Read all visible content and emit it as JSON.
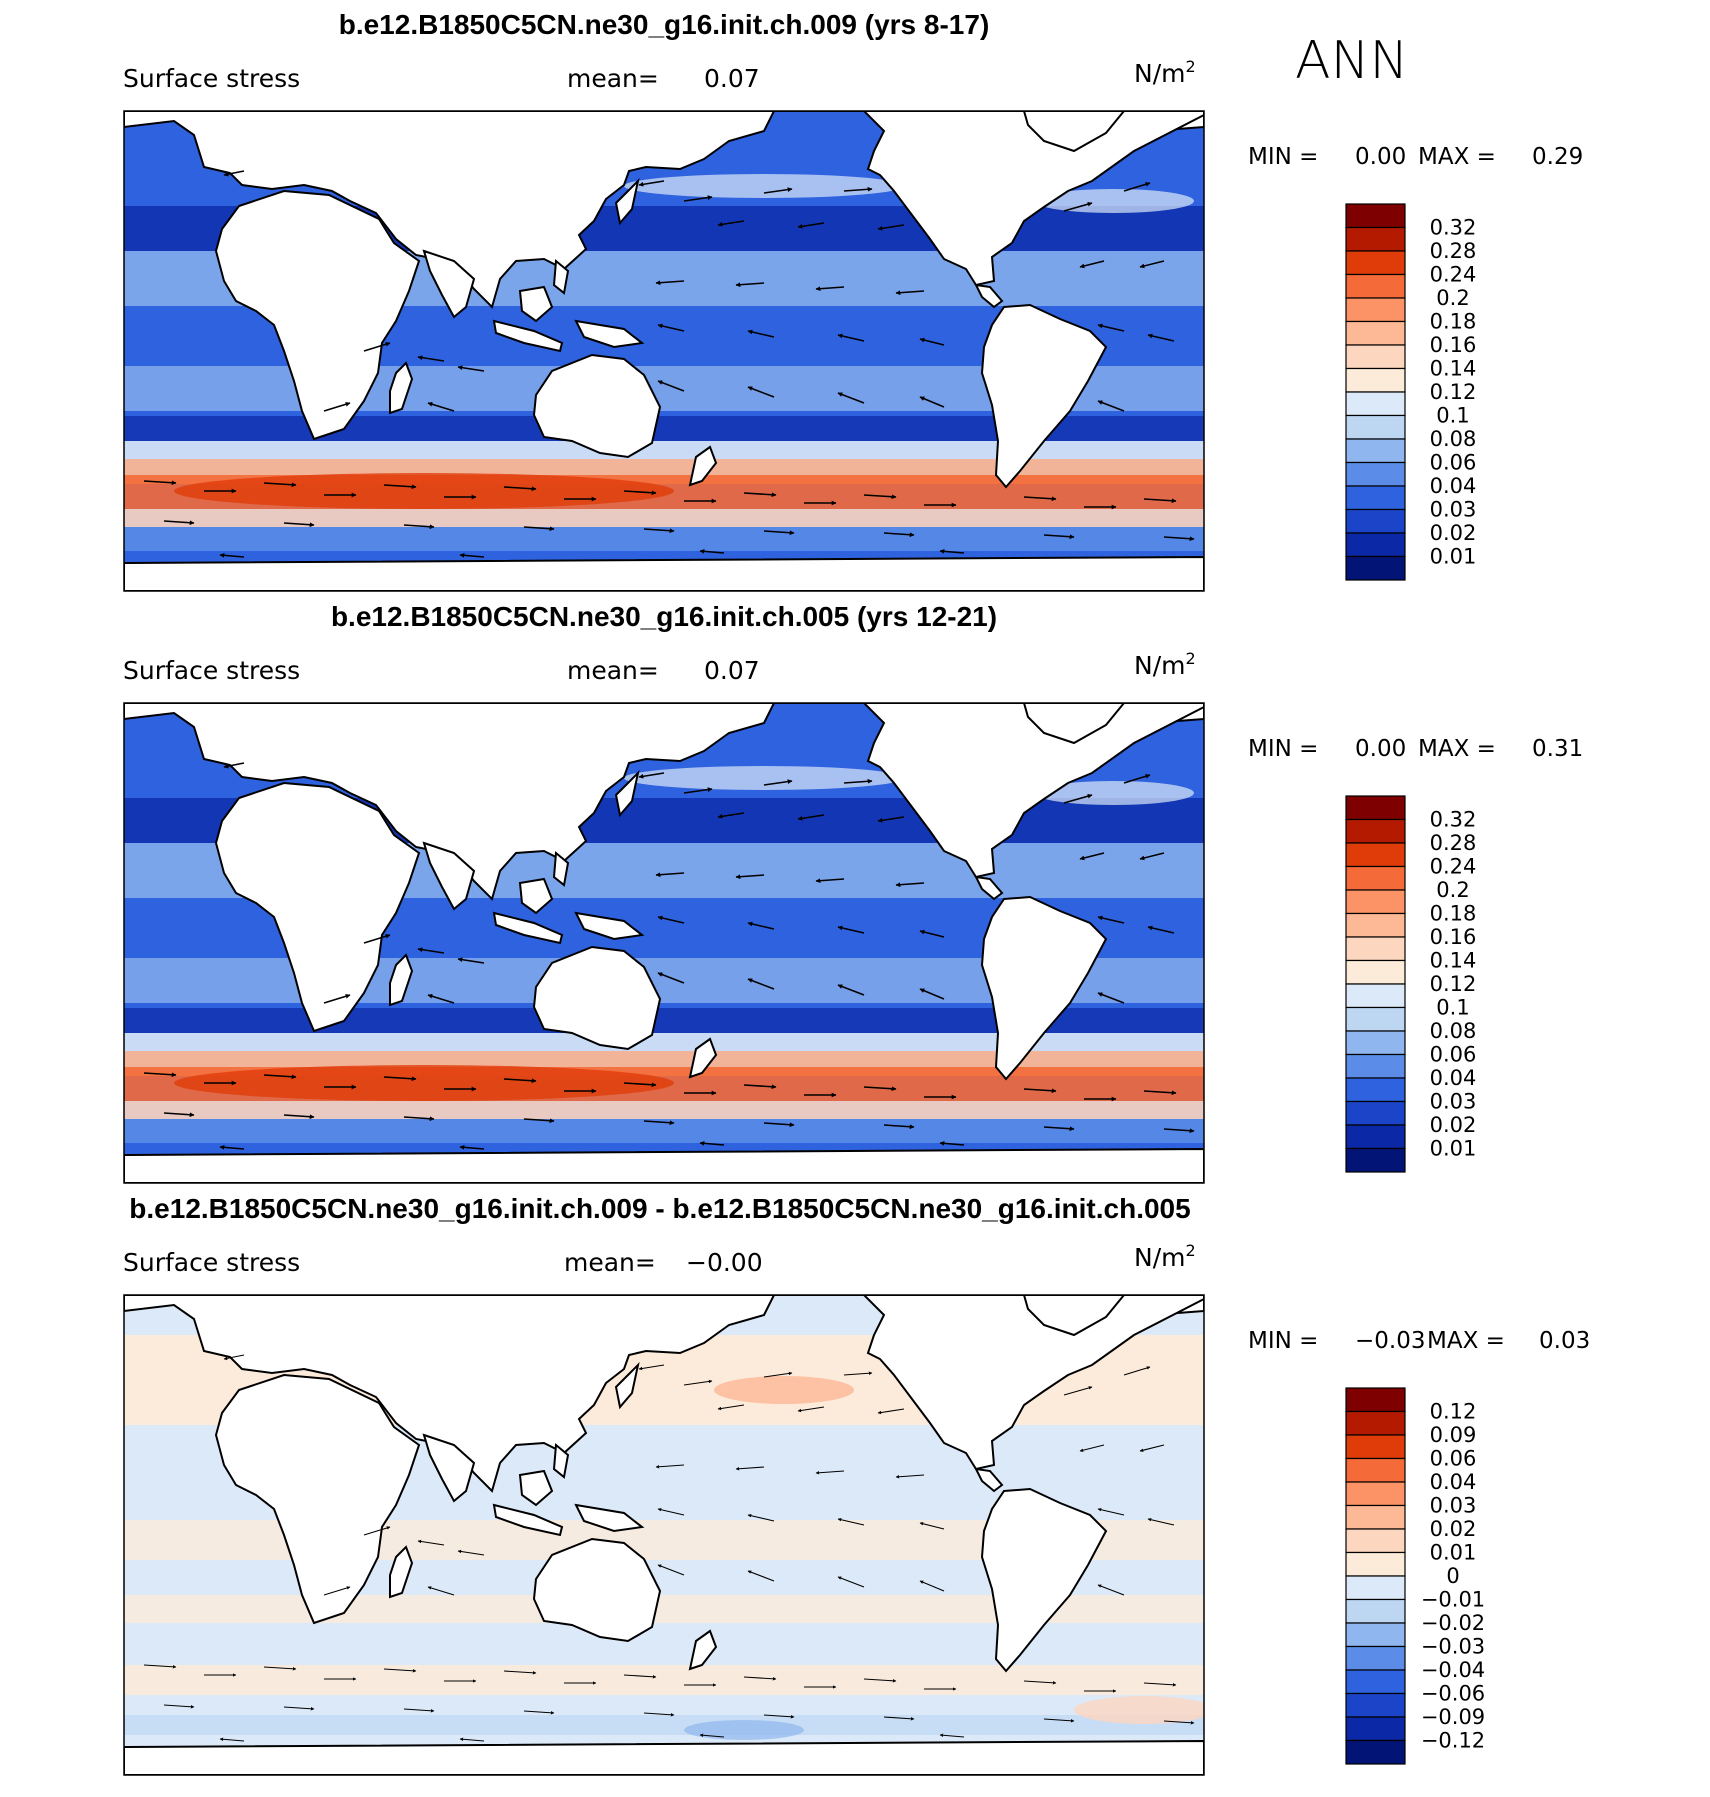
{
  "season": "ANN",
  "panels": [
    {
      "title": "b.e12.B1850C5CN.ne30_g16.init.ch.009 (yrs 8-17)",
      "left_label": "Surface stress",
      "mean_label": "mean=",
      "mean_value": "0.07",
      "units": "N/m",
      "units_sup": "2",
      "min_label": "MIN =",
      "min_value": "0.00",
      "max_label": "MAX =",
      "max_value": "0.29",
      "colorbar": {
        "labels": [
          "0.32",
          "0.28",
          "0.24",
          "0.2",
          "0.18",
          "0.16",
          "0.14",
          "0.12",
          "0.1",
          "0.08",
          "0.06",
          "0.04",
          "0.03",
          "0.02",
          "0.01"
        ],
        "colors": [
          "#7f0000",
          "#b31a00",
          "#e03c0a",
          "#f46a38",
          "#fb9366",
          "#fdb895",
          "#fdd6bf",
          "#fdebd9",
          "#dce9f8",
          "#bdd7f3",
          "#8fb6ee",
          "#5a8ce8",
          "#2f62de",
          "#1b44c9",
          "#0b29a6",
          "#021577"
        ]
      }
    },
    {
      "title": "b.e12.B1850C5CN.ne30_g16.init.ch.005 (yrs 12-21)",
      "left_label": "Surface stress",
      "mean_label": "mean=",
      "mean_value": "0.07",
      "units": "N/m",
      "units_sup": "2",
      "min_label": "MIN =",
      "min_value": "0.00",
      "max_label": "MAX =",
      "max_value": "0.31",
      "colorbar": {
        "labels": [
          "0.32",
          "0.28",
          "0.24",
          "0.2",
          "0.18",
          "0.16",
          "0.14",
          "0.12",
          "0.1",
          "0.08",
          "0.06",
          "0.04",
          "0.03",
          "0.02",
          "0.01"
        ],
        "colors": [
          "#7f0000",
          "#b31a00",
          "#e03c0a",
          "#f46a38",
          "#fb9366",
          "#fdb895",
          "#fdd6bf",
          "#fdebd9",
          "#dce9f8",
          "#bdd7f3",
          "#8fb6ee",
          "#5a8ce8",
          "#2f62de",
          "#1b44c9",
          "#0b29a6",
          "#021577"
        ]
      }
    },
    {
      "title": "b.e12.B1850C5CN.ne30_g16.init.ch.009 - b.e12.B1850C5CN.ne30_g16.init.ch.005",
      "left_label": "Surface stress",
      "mean_label": "mean=",
      "mean_value": "−0.00",
      "units": "N/m",
      "units_sup": "2",
      "min_label": "MIN =",
      "min_value": "−0.03",
      "max_label": "MAX =",
      "max_value": "0.03",
      "colorbar": {
        "labels": [
          "0.12",
          "0.09",
          "0.06",
          "0.04",
          "0.03",
          "0.02",
          "0.01",
          "0",
          "−0.01",
          "−0.02",
          "−0.03",
          "−0.04",
          "−0.06",
          "−0.09",
          "−0.12"
        ],
        "colors": [
          "#7f0000",
          "#b31a00",
          "#e03c0a",
          "#f46a38",
          "#fb9366",
          "#fdb895",
          "#fdd6bf",
          "#fdebd9",
          "#dce9f8",
          "#bdd7f3",
          "#8fb6ee",
          "#5a8ce8",
          "#2f62de",
          "#1b44c9",
          "#0b29a6",
          "#021577"
        ]
      }
    }
  ]
}
